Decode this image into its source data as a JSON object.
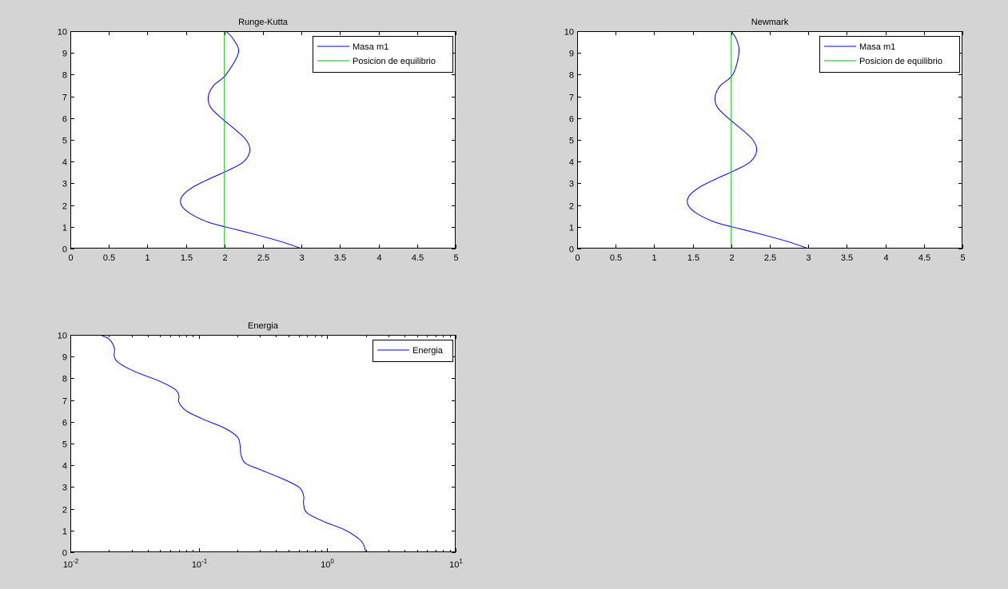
{
  "window": {
    "background": "#d4d4d4"
  },
  "chart_data": [
    {
      "type": "line",
      "title": "Runge-Kutta",
      "xlabel": "",
      "ylabel": "",
      "xlim": [
        0,
        5
      ],
      "ylim": [
        0,
        10
      ],
      "xscale": "linear",
      "xticks": [
        0,
        0.5,
        1,
        1.5,
        2,
        2.5,
        3,
        3.5,
        4,
        4.5,
        5
      ],
      "xtick_labels": [
        "0",
        "0.5",
        "1",
        "1.5",
        "2",
        "2.5",
        "3",
        "3.5",
        "4",
        "4.5",
        "5"
      ],
      "yticks": [
        0,
        1,
        2,
        3,
        4,
        5,
        6,
        7,
        8,
        9,
        10
      ],
      "ytick_labels": [
        "0",
        "1",
        "2",
        "3",
        "4",
        "5",
        "6",
        "7",
        "8",
        "9",
        "10"
      ],
      "grid": false,
      "legend": {
        "position": "top-right"
      },
      "series": [
        {
          "name": "Masa m1",
          "color": "#0000ff",
          "x": [
            3.0,
            2.75,
            2.45,
            2.12,
            1.8,
            1.56,
            1.44,
            1.45,
            1.58,
            1.8,
            2.05,
            2.25,
            2.33,
            2.28,
            2.13,
            1.96,
            1.82,
            1.79,
            1.86,
            2.02,
            2.18,
            2.12,
            2.02
          ],
          "y": [
            0.0,
            0.3,
            0.6,
            0.9,
            1.2,
            1.6,
            2.0,
            2.4,
            2.8,
            3.2,
            3.6,
            4.0,
            4.5,
            5.0,
            5.5,
            6.0,
            6.5,
            7.0,
            7.5,
            8.0,
            9.0,
            9.6,
            10.0
          ]
        },
        {
          "name": "Posicion de equilibrio",
          "color": "#00c000",
          "x": [
            2,
            2
          ],
          "y": [
            0,
            10
          ]
        }
      ]
    },
    {
      "type": "line",
      "title": "Newmark",
      "xlabel": "",
      "ylabel": "",
      "xlim": [
        0,
        5
      ],
      "ylim": [
        0,
        10
      ],
      "xscale": "linear",
      "xticks": [
        0,
        0.5,
        1,
        1.5,
        2,
        2.5,
        3,
        3.5,
        4,
        4.5,
        5
      ],
      "xtick_labels": [
        "0",
        "0.5",
        "1",
        "1.5",
        "2",
        "2.5",
        "3",
        "3.5",
        "4",
        "4.5",
        "5"
      ],
      "yticks": [
        0,
        1,
        2,
        3,
        4,
        5,
        6,
        7,
        8,
        9,
        10
      ],
      "ytick_labels": [
        "0",
        "1",
        "2",
        "3",
        "4",
        "5",
        "6",
        "7",
        "8",
        "9",
        "10"
      ],
      "grid": false,
      "legend": {
        "position": "top-right"
      },
      "series": [
        {
          "name": "Masa m1",
          "color": "#0000ff",
          "x": [
            3.0,
            2.75,
            2.45,
            2.12,
            1.8,
            1.56,
            1.44,
            1.45,
            1.58,
            1.8,
            2.05,
            2.25,
            2.33,
            2.28,
            2.13,
            1.96,
            1.82,
            1.79,
            1.86,
            2.02,
            2.1,
            2.07,
            2.0
          ],
          "y": [
            0.0,
            0.3,
            0.6,
            0.9,
            1.2,
            1.6,
            2.0,
            2.4,
            2.8,
            3.2,
            3.6,
            4.0,
            4.5,
            5.0,
            5.5,
            6.0,
            6.5,
            7.0,
            7.5,
            8.0,
            9.0,
            9.6,
            10.0
          ]
        },
        {
          "name": "Posicion de equilibrio",
          "color": "#00c000",
          "x": [
            2,
            2
          ],
          "y": [
            0,
            10
          ]
        }
      ]
    },
    {
      "type": "line",
      "title": "Energia",
      "xlabel": "",
      "ylabel": "",
      "xlim": [
        0.01,
        10
      ],
      "ylim": [
        0,
        10
      ],
      "xscale": "log",
      "xticks": [
        0.01,
        0.1,
        1,
        10
      ],
      "xtick_labels": [
        {
          "base": "10",
          "exp": "-2"
        },
        {
          "base": "10",
          "exp": "-1"
        },
        {
          "base": "10",
          "exp": "0"
        },
        {
          "base": "10",
          "exp": "1"
        }
      ],
      "yticks": [
        0,
        1,
        2,
        3,
        4,
        5,
        6,
        7,
        8,
        9,
        10
      ],
      "ytick_labels": [
        "0",
        "1",
        "2",
        "3",
        "4",
        "5",
        "6",
        "7",
        "8",
        "9",
        "10"
      ],
      "grid": false,
      "legend": {
        "position": "top-right"
      },
      "series": [
        {
          "name": "Energia",
          "color": "#0000ff",
          "x": [
            2.0,
            1.85,
            1.4,
            0.95,
            0.7,
            0.655,
            0.655,
            0.6,
            0.44,
            0.3,
            0.23,
            0.213,
            0.21,
            0.2,
            0.16,
            0.11,
            0.08,
            0.07,
            0.07,
            0.065,
            0.048,
            0.032,
            0.024,
            0.022,
            0.022,
            0.02,
            0.017
          ],
          "y": [
            0.0,
            0.5,
            1.0,
            1.4,
            1.8,
            2.2,
            2.6,
            3.0,
            3.4,
            3.8,
            4.1,
            4.5,
            4.9,
            5.3,
            5.7,
            6.1,
            6.5,
            6.9,
            7.2,
            7.5,
            7.9,
            8.3,
            8.7,
            9.0,
            9.4,
            9.8,
            10.0
          ]
        }
      ]
    }
  ]
}
